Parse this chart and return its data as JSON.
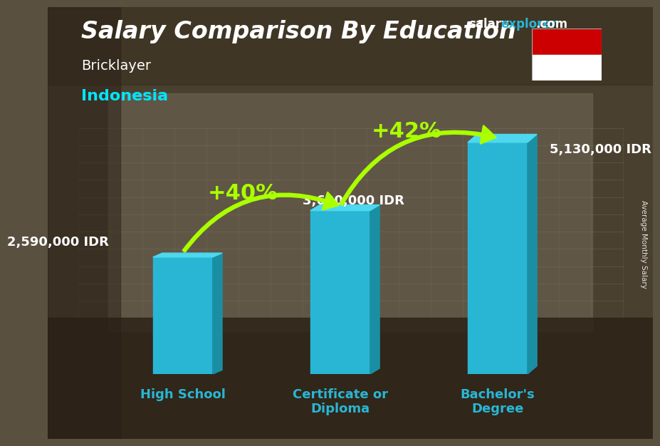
{
  "title": "Salary Comparison By Education",
  "subtitle_job": "Bricklayer",
  "subtitle_country": "Indonesia",
  "categories": [
    "High School",
    "Certificate or\nDiploma",
    "Bachelor's\nDegree"
  ],
  "values": [
    2590000,
    3620000,
    5130000
  ],
  "value_labels": [
    "2,590,000 IDR",
    "3,620,000 IDR",
    "5,130,000 IDR"
  ],
  "bar_color": "#29b6d4",
  "bar_color_right": "#1a8fa3",
  "bar_color_top": "#4dd8ef",
  "background_color": "#5a5040",
  "title_color": "#ffffff",
  "subtitle_job_color": "#ffffff",
  "subtitle_country_color": "#00e5ff",
  "label_color": "#ffffff",
  "xlabel_color": "#29b6d4",
  "pct_color": "#aaff00",
  "arrow_color": "#aaff00",
  "pct_labels": [
    "+40%",
    "+42%"
  ],
  "watermark_salary": "salary",
  "watermark_explorer": "explorer",
  "watermark_dot": ".",
  "watermark_com": "com",
  "ylabel_rotated": "Average Monthly Salary",
  "ylim": [
    0,
    6500000
  ],
  "bar_width": 0.38,
  "flag_red": "#cc0001",
  "flag_white": "#ffffff",
  "title_fontsize": 24,
  "subtitle_job_fontsize": 14,
  "subtitle_country_fontsize": 16,
  "value_fontsize": 13,
  "xlabel_fontsize": 13,
  "pct_fontsize": 22,
  "watermark_fontsize": 12
}
